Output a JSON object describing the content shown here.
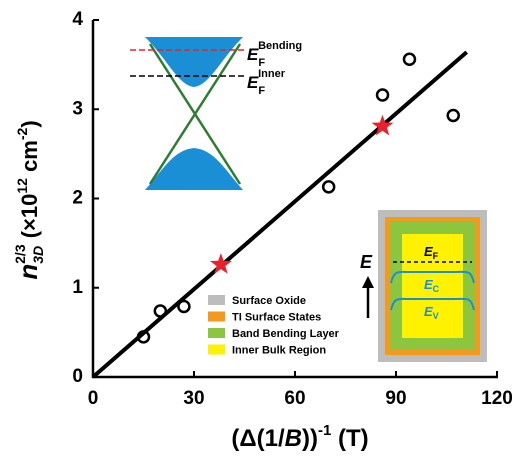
{
  "chart_data": {
    "type": "scatter",
    "xlim": [
      0,
      120
    ],
    "xticks": [
      0,
      30,
      60,
      90,
      120
    ],
    "ylim": [
      0,
      4
    ],
    "yticks": [
      0,
      1,
      2,
      3,
      4
    ],
    "x_label_parts": [
      "(Δ(1/",
      "B",
      "))",
      "-1",
      " (T)"
    ],
    "y_label_parts": [
      "n",
      "3D",
      "2/3",
      "  (×10",
      "12",
      " cm",
      "-2",
      ")"
    ],
    "series": [
      {
        "marker": "circle",
        "color": "#000000",
        "x": [
          15,
          20,
          27,
          70,
          86,
          94,
          107
        ],
        "values": [
          0.45,
          0.74,
          0.79,
          2.13,
          3.16,
          3.56,
          2.93
        ]
      },
      {
        "marker": "star",
        "color": "#e8212b",
        "x": [
          38,
          86
        ],
        "values": [
          1.26,
          2.81
        ]
      },
      {
        "marker": "line",
        "color": "#000000",
        "x": [
          0,
          111
        ],
        "values": [
          0,
          3.64
        ]
      }
    ],
    "band_labels": {
      "bending": [
        "E",
        "F",
        "Bending"
      ],
      "inner": [
        "E",
        "F",
        "Inner"
      ]
    },
    "energy_labels": {
      "axis": "E",
      "fermi": [
        "E",
        "F"
      ],
      "conduction": [
        "E",
        "C"
      ],
      "valence": [
        "E",
        "V"
      ]
    },
    "legend": [
      {
        "name": "Surface Oxide",
        "color": "#bdbdbd"
      },
      {
        "name": "TI Surface States",
        "color": "#f39a1e"
      },
      {
        "name": "Band Bending Layer",
        "color": "#8cc63f"
      },
      {
        "name": "Inner Bulk Region",
        "color": "#fff200"
      }
    ]
  }
}
